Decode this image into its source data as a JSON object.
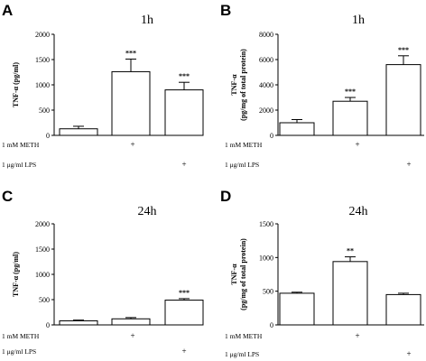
{
  "treatments": {
    "meth_label": "1 mM METH",
    "lps_label": "1 μg/ml LPS",
    "meth": [
      "",
      "+",
      ""
    ],
    "lps": [
      "",
      "",
      "+"
    ]
  },
  "chart_data": [
    {
      "panel": "A",
      "type": "bar",
      "title": "1h",
      "ylabel": "TNF-α (pg/ml)",
      "ylim": [
        0,
        2000
      ],
      "yticks": [
        0,
        500,
        1000,
        1500,
        2000
      ],
      "values": [
        130,
        1260,
        900
      ],
      "errors": [
        50,
        250,
        150
      ],
      "significance": [
        "",
        "***",
        "***"
      ]
    },
    {
      "panel": "B",
      "type": "bar",
      "title": "1h",
      "ylabel_lines": [
        "TNF-α",
        "(pg/mg of total protein)"
      ],
      "ylim": [
        0,
        8000
      ],
      "yticks": [
        0,
        2000,
        4000,
        6000,
        8000
      ],
      "values": [
        1000,
        2700,
        5600
      ],
      "errors": [
        250,
        300,
        700
      ],
      "significance": [
        "",
        "***",
        "***"
      ]
    },
    {
      "panel": "C",
      "type": "bar",
      "title": "24h",
      "ylabel": "TNF-α (pg/ml)",
      "ylim": [
        0,
        2000
      ],
      "yticks": [
        0,
        500,
        1000,
        1500,
        2000
      ],
      "values": [
        80,
        120,
        490
      ],
      "errors": [
        15,
        25,
        30
      ],
      "significance": [
        "",
        "",
        "***"
      ]
    },
    {
      "panel": "D",
      "type": "bar",
      "title": "24h",
      "ylabel_lines": [
        "TNF-α",
        "(pg/mg of total protein)"
      ],
      "ylim": [
        0,
        1500
      ],
      "yticks": [
        0,
        500,
        1000,
        1500
      ],
      "values": [
        470,
        940,
        450
      ],
      "errors": [
        15,
        70,
        20
      ],
      "significance": [
        "",
        "**",
        ""
      ]
    }
  ]
}
